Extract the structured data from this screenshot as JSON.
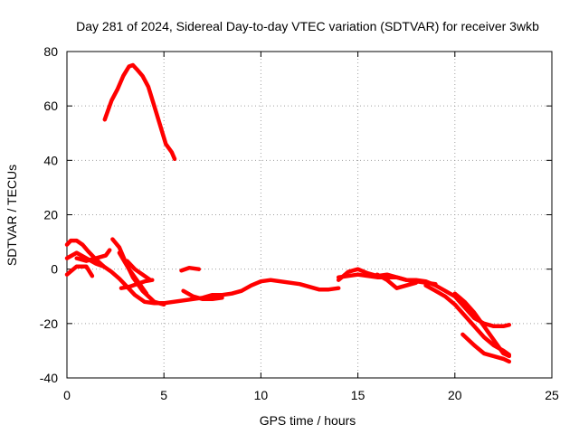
{
  "chart_data": {
    "type": "line",
    "title": "Day 281 of 2024, Sidereal Day-to-day VTEC variation (SDTVAR) for receiver 3wkb",
    "xlabel": "GPS time / hours",
    "ylabel": "SDTVAR / TECUs",
    "xlim": [
      0,
      25
    ],
    "ylim": [
      -40,
      80
    ],
    "xticks": [
      0,
      5,
      10,
      15,
      20,
      25
    ],
    "yticks": [
      -40,
      -20,
      0,
      20,
      40,
      60,
      80
    ],
    "grid": true,
    "legend": "none",
    "color": "#ff0000",
    "series": [
      {
        "name": "arc-high",
        "x": [
          1.95,
          2.1,
          2.3,
          2.6,
          2.9,
          3.2,
          3.4,
          3.6,
          3.9,
          4.2,
          4.5,
          4.8,
          5.1,
          5.4,
          5.55
        ],
        "y": [
          55,
          58,
          62,
          66,
          71,
          74.5,
          75,
          73.5,
          71,
          67,
          60,
          53,
          46,
          43,
          40.5
        ]
      },
      {
        "name": "arc-a",
        "x": [
          0,
          0.2,
          0.5,
          0.8,
          1.1,
          1.5,
          1.9,
          2.3,
          2.7,
          3.1,
          3.5,
          4.0,
          4.5,
          5.0,
          5.5,
          6.0,
          6.5,
          7.0,
          7.5,
          8.0,
          8.5,
          9.0,
          9.5,
          10.0,
          10.5,
          11.0,
          11.5,
          12.0,
          12.5,
          13.0,
          13.5,
          14.0
        ],
        "y": [
          9,
          10.5,
          10.5,
          9,
          6.5,
          3.5,
          1,
          -1,
          -3.5,
          -6.5,
          -9.5,
          -12,
          -12.5,
          -12.5,
          -12,
          -11.5,
          -11,
          -10.5,
          -9.5,
          -9.5,
          -9,
          -8,
          -6,
          -4.5,
          -4,
          -4.5,
          -5,
          -5.5,
          -6.5,
          -7.5,
          -7.5,
          -7
        ]
      },
      {
        "name": "arc-b",
        "x": [
          0,
          0.5,
          1.0,
          1.5,
          1.9
        ],
        "y": [
          4,
          6,
          4,
          2,
          1
        ]
      },
      {
        "name": "arc-c",
        "x": [
          0,
          0.5,
          1.0,
          1.3
        ],
        "y": [
          -2,
          1,
          1,
          -2.5
        ]
      },
      {
        "name": "arc-d",
        "x": [
          0.5,
          1.0,
          1.5,
          2.0,
          2.2
        ],
        "y": [
          4,
          3,
          4,
          5,
          7
        ]
      },
      {
        "name": "arc-e",
        "x": [
          2.35,
          2.7,
          3.0,
          3.4,
          3.9,
          4.5,
          5.0
        ],
        "y": [
          11,
          8,
          3,
          -3,
          -8,
          -12,
          -13
        ]
      },
      {
        "name": "arc-f",
        "x": [
          2.7,
          3.2,
          3.7,
          4.1
        ],
        "y": [
          6,
          0,
          -5,
          -9
        ]
      },
      {
        "name": "arc-g",
        "x": [
          3.1,
          3.5,
          3.9,
          4.3
        ],
        "y": [
          3,
          0,
          -2,
          -4
        ]
      },
      {
        "name": "arc-h",
        "x": [
          2.8,
          3.2,
          3.6,
          4.0,
          4.4
        ],
        "y": [
          -7,
          -6.5,
          -5.5,
          -4.5,
          -4
        ]
      },
      {
        "name": "arc-i",
        "x": [
          5.9,
          6.3,
          6.8
        ],
        "y": [
          -0.5,
          0.5,
          0
        ]
      },
      {
        "name": "arc-j",
        "x": [
          6.0,
          6.5,
          7.0,
          7.5,
          8.0
        ],
        "y": [
          -8,
          -10,
          -11,
          -11,
          -10.5
        ]
      },
      {
        "name": "arc-k",
        "x": [
          14.0,
          14.5,
          15.0,
          15.5,
          16.0,
          16.5,
          17.0,
          17.5,
          18.0,
          18.5,
          19.0,
          19.5,
          20.0,
          20.5,
          21.0,
          21.5,
          22.0,
          22.5,
          22.8
        ],
        "y": [
          -4,
          -1,
          0,
          -1.5,
          -2.5,
          -2,
          -3,
          -4,
          -4,
          -4.5,
          -6,
          -8,
          -10,
          -14,
          -18,
          -20,
          -21,
          -21,
          -20.5
        ]
      },
      {
        "name": "arc-l",
        "x": [
          14.0,
          14.5,
          15.0,
          15.5,
          16.0,
          16.5,
          17.0,
          17.5,
          18.0,
          18.5,
          19.0
        ],
        "y": [
          -3,
          -2.5,
          -2,
          -2.5,
          -3,
          -3,
          -3,
          -4,
          -4.5,
          -5,
          -5.5
        ]
      },
      {
        "name": "arc-m",
        "x": [
          16.0,
          16.5,
          17.0,
          17.5,
          18.0
        ],
        "y": [
          -2,
          -4,
          -7,
          -6,
          -5
        ]
      },
      {
        "name": "arc-n",
        "x": [
          18.5,
          19.0,
          19.5,
          20.0,
          20.5,
          21.0,
          21.5,
          22.0,
          22.5,
          22.8
        ],
        "y": [
          -6,
          -8,
          -10,
          -13,
          -17,
          -21,
          -25,
          -28,
          -30,
          -31.5
        ]
      },
      {
        "name": "arc-o",
        "x": [
          20.0,
          20.5,
          21.0,
          21.5,
          22.0,
          22.5,
          22.8
        ],
        "y": [
          -9,
          -12,
          -16,
          -21,
          -26,
          -31,
          -32
        ]
      },
      {
        "name": "arc-p",
        "x": [
          20.4,
          21.0,
          21.5,
          22.0,
          22.5,
          22.8
        ],
        "y": [
          -24,
          -28,
          -31,
          -32,
          -33,
          -34
        ]
      }
    ]
  }
}
